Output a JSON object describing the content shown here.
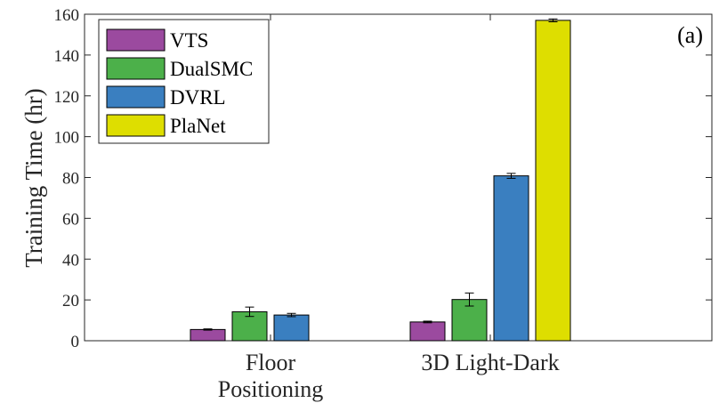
{
  "chart_data": {
    "type": "bar",
    "panel_label": "(a)",
    "ylabel": "Training Time (hr)",
    "xlabel": "",
    "ylim": [
      0,
      160
    ],
    "yticks": [
      0,
      20,
      40,
      60,
      80,
      100,
      120,
      140,
      160
    ],
    "categories": [
      {
        "lines": [
          "Floor",
          "Positioning"
        ]
      },
      {
        "lines": [
          "3D Light-Dark"
        ]
      }
    ],
    "legend_position": "top-left",
    "series": [
      {
        "name": "VTS",
        "color": "#9b4a9f",
        "values": [
          5.5,
          9.2
        ],
        "errors": [
          0.3,
          0.4
        ]
      },
      {
        "name": "DualSMC",
        "color": "#4cb04a",
        "values": [
          14.2,
          20.2
        ],
        "errors": [
          2.3,
          3.2
        ]
      },
      {
        "name": "DVRL",
        "color": "#3a7fc0",
        "values": [
          12.6,
          80.8
        ],
        "errors": [
          0.8,
          1.2
        ]
      },
      {
        "name": "PlaNet",
        "color": "#dede00",
        "values": [
          null,
          157.0
        ],
        "errors": [
          null,
          0.7
        ]
      }
    ]
  }
}
